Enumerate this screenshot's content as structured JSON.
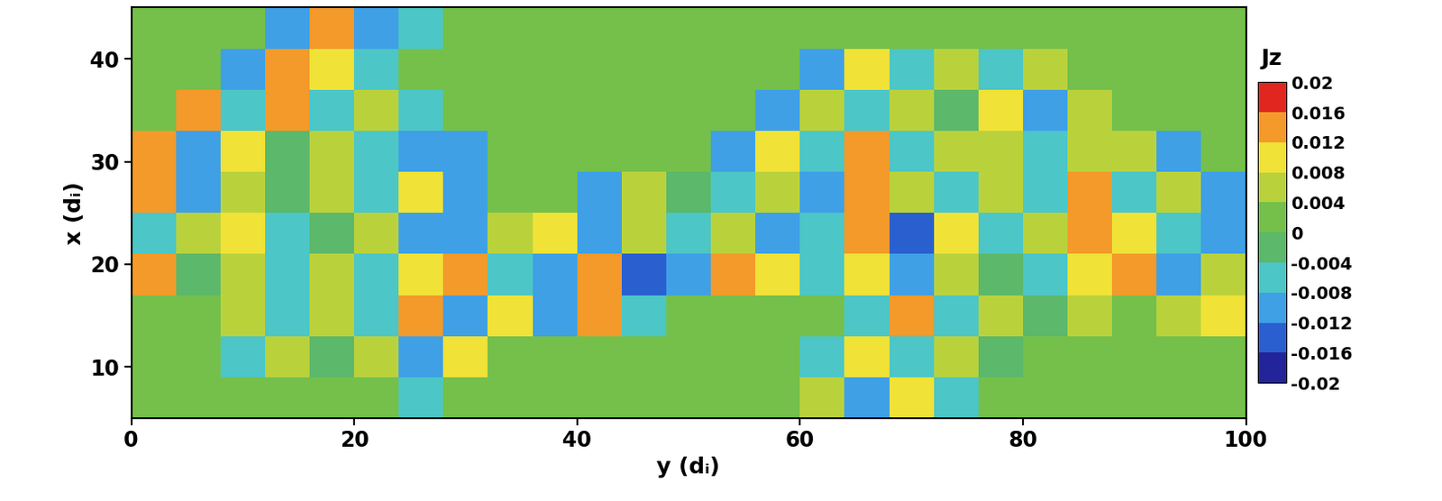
{
  "chart_data": {
    "type": "heatmap",
    "xlabel": "y (dᵢ)",
    "ylabel": "x (dᵢ)",
    "xlim": [
      0,
      100
    ],
    "ylim": [
      5,
      45
    ],
    "xticks": [
      0,
      20,
      40,
      60,
      80,
      100
    ],
    "yticks": [
      10,
      20,
      30,
      40
    ],
    "y_edges": [
      0,
      4,
      8,
      12,
      16,
      20,
      24,
      28,
      32,
      36,
      40,
      44,
      48,
      52,
      56,
      60,
      64,
      68,
      72,
      76,
      80,
      84,
      88,
      92,
      96,
      100
    ],
    "x_edges": [
      5,
      9,
      13,
      17,
      21,
      25,
      29,
      33,
      37,
      41,
      45
    ],
    "cells": [
      [
        0,
        0,
        0,
        0,
        0,
        0,
        -0.008,
        0,
        0,
        0,
        0,
        0,
        0,
        0,
        0,
        0.004,
        -0.012,
        0.008,
        -0.008,
        0,
        0,
        0,
        0,
        0,
        0
      ],
      [
        0,
        0,
        -0.008,
        0.006,
        -0.004,
        0.004,
        -0.012,
        0.01,
        0,
        0,
        0,
        0,
        0,
        0,
        0,
        -0.006,
        0.01,
        -0.008,
        0.006,
        -0.004,
        0,
        0,
        0,
        0,
        0
      ],
      [
        0,
        0,
        0.004,
        -0.006,
        0.004,
        -0.008,
        0.012,
        -0.012,
        0.01,
        -0.01,
        0.012,
        -0.008,
        0,
        0,
        0,
        0,
        -0.008,
        0.012,
        -0.006,
        0.004,
        -0.004,
        0.006,
        0,
        0.004,
        0.01
      ],
      [
        0.012,
        -0.004,
        0.004,
        -0.008,
        0.006,
        -0.006,
        0.008,
        0.012,
        -0.008,
        -0.012,
        0.014,
        -0.016,
        -0.012,
        0.012,
        0.01,
        -0.006,
        0.008,
        -0.01,
        0.006,
        -0.004,
        -0.008,
        0.01,
        0.012,
        -0.01,
        0.006
      ],
      [
        -0.008,
        0.004,
        0.01,
        -0.006,
        -0.004,
        0.006,
        -0.012,
        -0.01,
        0.006,
        0.01,
        -0.01,
        0.004,
        -0.008,
        0.006,
        -0.012,
        -0.008,
        0.014,
        -0.016,
        0.008,
        -0.006,
        0.004,
        0.012,
        0.01,
        -0.008,
        -0.01
      ],
      [
        0.012,
        -0.01,
        0.006,
        -0.004,
        0.004,
        -0.006,
        0.008,
        -0.012,
        0,
        0,
        -0.01,
        0.006,
        -0.004,
        -0.008,
        0.006,
        -0.012,
        0.014,
        0.006,
        -0.008,
        0.004,
        -0.006,
        0.014,
        -0.008,
        0.006,
        -0.01
      ],
      [
        0.014,
        -0.01,
        0.008,
        -0.004,
        0.004,
        -0.008,
        -0.012,
        -0.01,
        0,
        0,
        0,
        0,
        0,
        -0.01,
        0.008,
        -0.006,
        0.012,
        -0.008,
        0.004,
        0.006,
        -0.006,
        0.004,
        0.006,
        -0.01,
        0
      ],
      [
        0,
        0.014,
        -0.008,
        0.012,
        -0.006,
        0.004,
        -0.008,
        0,
        0,
        0,
        0,
        0,
        0,
        0,
        -0.012,
        0.006,
        -0.008,
        0.004,
        -0.004,
        0.008,
        -0.012,
        0.004,
        0,
        0,
        0
      ],
      [
        0,
        0,
        -0.01,
        0.014,
        0.01,
        -0.008,
        0,
        0,
        0,
        0,
        0,
        0,
        0,
        0,
        0,
        -0.012,
        0.01,
        -0.006,
        0.004,
        -0.008,
        0.004,
        0,
        0,
        0,
        0
      ],
      [
        0,
        0,
        0,
        -0.01,
        0.012,
        -0.012,
        -0.006,
        0,
        0,
        0,
        0,
        0,
        0,
        0,
        0,
        0,
        0,
        0,
        0,
        0,
        0,
        0,
        0,
        0,
        0
      ]
    ],
    "colorbar": {
      "title": "Jz",
      "range": [
        -0.02,
        0.02
      ],
      "ticks": [
        -0.02,
        -0.016,
        -0.012,
        -0.008,
        -0.004,
        0,
        0.004,
        0.008,
        0.012,
        0.016,
        0.02
      ]
    }
  }
}
